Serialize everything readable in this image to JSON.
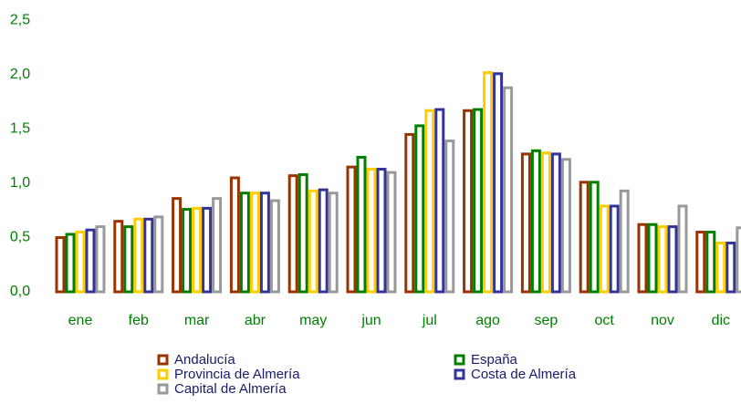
{
  "chart_data": {
    "type": "bar",
    "categories": [
      "ene",
      "feb",
      "mar",
      "abr",
      "may",
      "jun",
      "jul",
      "ago",
      "sep",
      "oct",
      "nov",
      "dic"
    ],
    "series": [
      {
        "name": "Andalucía",
        "color": "#993300",
        "values": [
          0.5,
          0.65,
          0.86,
          1.05,
          1.07,
          1.15,
          1.45,
          1.67,
          1.27,
          1.01,
          0.62,
          0.55
        ]
      },
      {
        "name": "España",
        "color": "#008000",
        "values": [
          0.53,
          0.6,
          0.76,
          0.91,
          1.08,
          1.24,
          1.53,
          1.68,
          1.3,
          1.01,
          0.62,
          0.55
        ]
      },
      {
        "name": "Provincia de Almería",
        "color": "#ffcc00",
        "values": [
          0.55,
          0.67,
          0.77,
          0.91,
          0.93,
          1.13,
          1.67,
          2.02,
          1.28,
          0.79,
          0.6,
          0.45
        ]
      },
      {
        "name": "Costa de Almería",
        "color": "#333399",
        "values": [
          0.57,
          0.67,
          0.77,
          0.91,
          0.94,
          1.13,
          1.68,
          2.01,
          1.27,
          0.79,
          0.6,
          0.45
        ]
      },
      {
        "name": "Capital de Almería",
        "color": "#999999",
        "values": [
          0.6,
          0.69,
          0.86,
          0.84,
          0.91,
          1.1,
          1.39,
          1.88,
          1.22,
          0.93,
          0.79,
          0.59
        ]
      }
    ],
    "ylim": [
      0,
      2.5
    ],
    "yticks": [
      {
        "value": 0,
        "label": "0,0"
      },
      {
        "value": 0.5,
        "label": "0,5"
      },
      {
        "value": 1,
        "label": "1,0"
      },
      {
        "value": 1.5,
        "label": "1,5"
      },
      {
        "value": 2,
        "label": "2,0"
      },
      {
        "value": 2.5,
        "label": "2,5"
      }
    ],
    "grid": false
  }
}
